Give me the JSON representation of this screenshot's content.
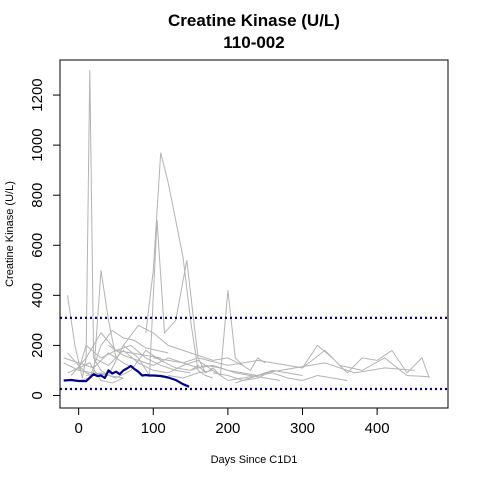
{
  "chart_data": {
    "type": "line",
    "title": "Creatine Kinase (U/L)",
    "subtitle": "110-002",
    "xlabel": "Days Since C1D1",
    "ylabel": "Creatine Kinase (U/L)",
    "xlim": [
      -25,
      495
    ],
    "ylim": [
      -50,
      1340
    ],
    "xticks": [
      0,
      100,
      200,
      300,
      400
    ],
    "yticks": [
      0,
      200,
      400,
      600,
      800,
      1000,
      1200
    ],
    "reference_lines": [
      {
        "y": 310,
        "color": "#00008b",
        "style": "dotted"
      },
      {
        "y": 26,
        "color": "#00008b",
        "style": "dotted"
      }
    ],
    "grid": false,
    "legend": "none",
    "colors": {
      "background_series": "#b3b3b3",
      "highlight": "#00008b"
    },
    "highlight_series": {
      "x": [
        -20,
        -10,
        0,
        10,
        20,
        25,
        30,
        35,
        40,
        45,
        50,
        55,
        60,
        65,
        70,
        75,
        80,
        85,
        90,
        95,
        100,
        110,
        120,
        130,
        140,
        148
      ],
      "y": [
        60,
        62,
        58,
        57,
        85,
        78,
        80,
        70,
        100,
        88,
        95,
        85,
        100,
        108,
        118,
        105,
        95,
        80,
        82,
        80,
        80,
        78,
        72,
        62,
        45,
        35
      ]
    },
    "series": [
      {
        "x": [
          -15,
          -5,
          5,
          10,
          15,
          20,
          30,
          40,
          60
        ],
        "y": [
          400,
          200,
          70,
          150,
          1300,
          150,
          100,
          80,
          70
        ]
      },
      {
        "x": [
          -15,
          0,
          10,
          20,
          30,
          40,
          50
        ],
        "y": [
          170,
          120,
          90,
          80,
          500,
          300,
          150
        ]
      },
      {
        "x": [
          90,
          100,
          110,
          120,
          130,
          140,
          150,
          160,
          170,
          180
        ],
        "y": [
          250,
          500,
          970,
          850,
          700,
          550,
          300,
          100,
          80,
          70
        ]
      },
      {
        "x": [
          60,
          80,
          95,
          105,
          115,
          130,
          145,
          160,
          170
        ],
        "y": [
          200,
          150,
          80,
          700,
          250,
          300,
          540,
          150,
          90
        ]
      },
      {
        "x": [
          150,
          160,
          170,
          180,
          190,
          200,
          210,
          220,
          230,
          240,
          250
        ],
        "y": [
          100,
          120,
          90,
          110,
          80,
          420,
          150,
          120,
          100,
          150,
          130
        ]
      },
      {
        "x": [
          100,
          140,
          160,
          200,
          240,
          280,
          300,
          320,
          340
        ],
        "y": [
          150,
          130,
          150,
          120,
          140,
          120,
          110,
          200,
          150
        ]
      },
      {
        "x": [
          300,
          330,
          360,
          380,
          400,
          420,
          440,
          460,
          470
        ],
        "y": [
          110,
          180,
          90,
          150,
          140,
          180,
          90,
          150,
          70
        ]
      },
      {
        "x": [
          350,
          380,
          410,
          440,
          470
        ],
        "y": [
          120,
          100,
          150,
          80,
          75
        ]
      },
      {
        "x": [
          -20,
          0,
          10,
          30,
          50,
          70,
          90,
          110
        ],
        "y": [
          130,
          100,
          200,
          150,
          180,
          170,
          160,
          150
        ]
      },
      {
        "x": [
          -10,
          10,
          30,
          50,
          70,
          90,
          110,
          130,
          150
        ],
        "y": [
          80,
          150,
          250,
          180,
          200,
          150,
          120,
          100,
          90
        ]
      },
      {
        "x": [
          0,
          20,
          40,
          60,
          80,
          100,
          120,
          140,
          160,
          180,
          200,
          220
        ],
        "y": [
          100,
          90,
          80,
          200,
          280,
          250,
          200,
          180,
          160,
          140,
          150,
          120
        ]
      },
      {
        "x": [
          10,
          30,
          50,
          70,
          90,
          110,
          130,
          150,
          170,
          190,
          210,
          230,
          250,
          270
        ],
        "y": [
          80,
          90,
          70,
          100,
          180,
          140,
          110,
          100,
          120,
          110,
          90,
          80,
          70,
          60
        ]
      },
      {
        "x": [
          20,
          40,
          60,
          80,
          100,
          120,
          140,
          160,
          180
        ],
        "y": [
          150,
          120,
          180,
          130,
          100,
          90,
          120,
          140,
          100
        ]
      },
      {
        "x": [
          40,
          60,
          80,
          100,
          120,
          140,
          160,
          180,
          200,
          220,
          240,
          260
        ],
        "y": [
          200,
          160,
          140,
          120,
          150,
          130,
          110,
          120,
          100,
          90,
          80,
          100
        ]
      },
      {
        "x": [
          180,
          200,
          220,
          240,
          260,
          280,
          300
        ],
        "y": [
          90,
          80,
          60,
          70,
          100,
          90,
          80
        ]
      },
      {
        "x": [
          -15,
          0,
          15,
          30,
          45,
          60
        ],
        "y": [
          90,
          110,
          130,
          60,
          50,
          70
        ]
      },
      {
        "x": [
          120,
          140,
          160,
          180,
          200,
          220,
          240,
          260,
          280,
          300,
          320,
          340,
          360
        ],
        "y": [
          80,
          70,
          90,
          100,
          60,
          70,
          80,
          90,
          70,
          60,
          80,
          70,
          60
        ]
      },
      {
        "x": [
          210,
          250,
          290,
          330,
          370,
          410,
          450
        ],
        "y": [
          50,
          90,
          110,
          130,
          90,
          110,
          100
        ]
      },
      {
        "x": [
          0,
          15,
          30,
          45,
          60,
          75,
          90,
          105,
          120
        ],
        "y": [
          60,
          70,
          200,
          260,
          230,
          220,
          190,
          180,
          170
        ]
      },
      {
        "x": [
          -20,
          0,
          20,
          40,
          60,
          80
        ],
        "y": [
          150,
          130,
          110,
          170,
          130,
          100
        ]
      }
    ]
  }
}
